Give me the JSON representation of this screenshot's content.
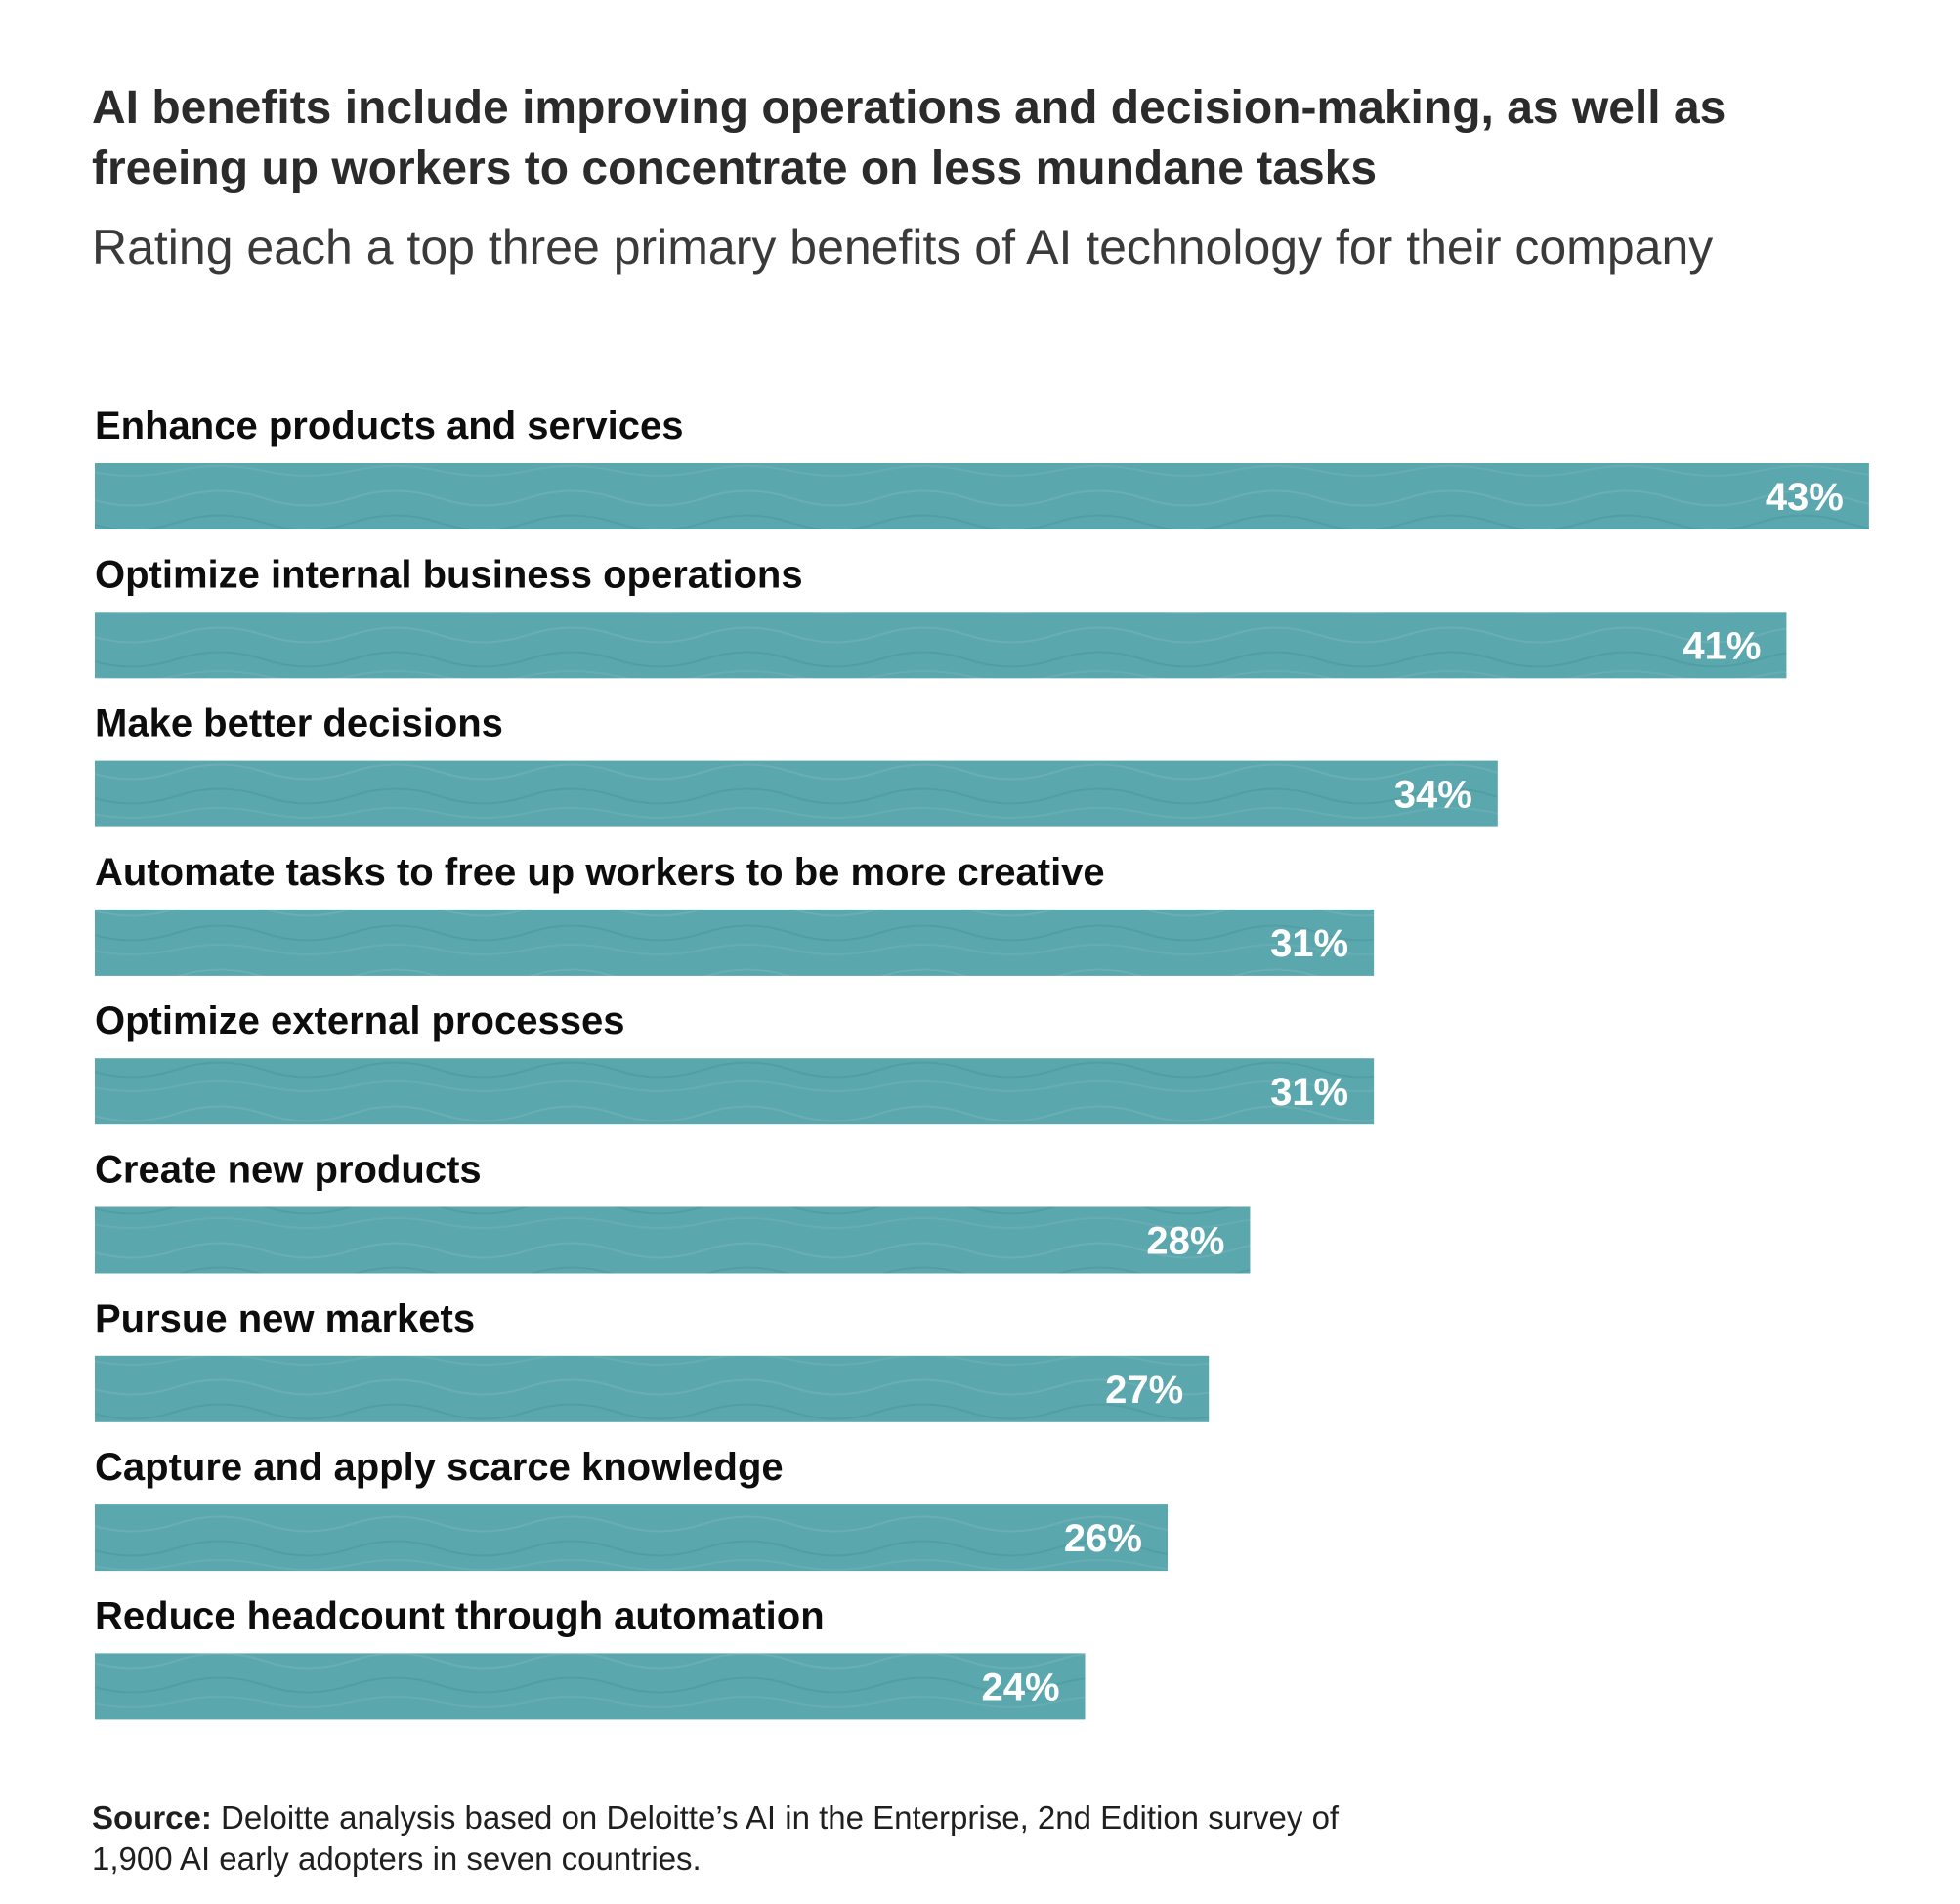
{
  "chart_data": {
    "type": "bar",
    "orientation": "horizontal",
    "title": "AI benefits include improving operations and decision-making, as well as freeing up workers to concentrate on less mundane tasks",
    "subtitle": "Rating each a top three primary benefits of AI technology for their company",
    "categories": [
      "Enhance products and services",
      "Optimize internal business operations",
      "Make better decisions",
      "Automate tasks to free up workers to be more creative",
      "Optimize external processes",
      "Create new products",
      "Pursue new markets",
      "Capture and apply scarce knowledge",
      "Reduce headcount through automation"
    ],
    "values": [
      43,
      41,
      34,
      31,
      31,
      28,
      27,
      26,
      24
    ],
    "value_labels": [
      "43%",
      "41%",
      "34%",
      "31%",
      "31%",
      "28%",
      "27%",
      "26%",
      "24%"
    ],
    "unit": "%",
    "bar_color": "#5aa7ae",
    "grid": false,
    "legend": "none"
  },
  "source": {
    "label": "Source:",
    "text": " Deloitte analysis based on Deloitte’s AI in the Enterprise, 2nd Edition survey of 1,900 AI early adopters in seven countries."
  }
}
